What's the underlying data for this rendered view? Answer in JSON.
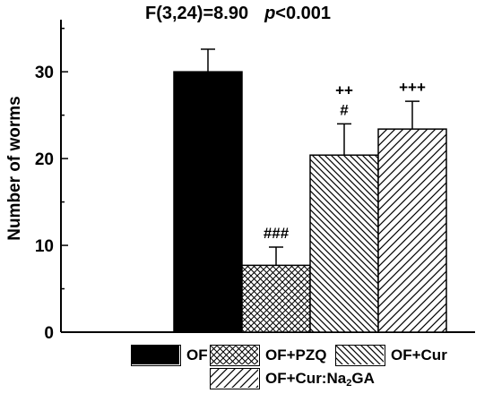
{
  "chart_data": {
    "type": "bar",
    "title": "F(3,24)=8.90",
    "p_value": "<0.001",
    "ylabel": "Number of worms",
    "xlabel": "",
    "ylim": [
      0,
      36
    ],
    "yticks": [
      0,
      10,
      20,
      30
    ],
    "grid": false,
    "legend_position": "bottom",
    "categories": [
      "OF",
      "OF+PZQ",
      "OF+Cur",
      "OF+Cur:Na2GA"
    ],
    "values": [
      30.0,
      7.7,
      20.4,
      23.4
    ],
    "errors": [
      2.6,
      2.1,
      3.6,
      3.2
    ],
    "annotations": [
      "",
      "###",
      "++\n#",
      "+++"
    ],
    "patterns": [
      "solid",
      "crosshatch",
      "diag-back",
      "diag-forward"
    ],
    "legend": [
      {
        "label": "OF",
        "pattern": "solid"
      },
      {
        "label": "OF+PZQ",
        "pattern": "crosshatch"
      },
      {
        "label": "OF+Cur",
        "pattern": "diag-back"
      },
      {
        "label": "OF+Cur:Na",
        "sub": "2",
        "label_end": "GA",
        "pattern": "diag-forward"
      }
    ],
    "colors": {
      "ink": "#000000",
      "fill": "#ffffff"
    }
  }
}
